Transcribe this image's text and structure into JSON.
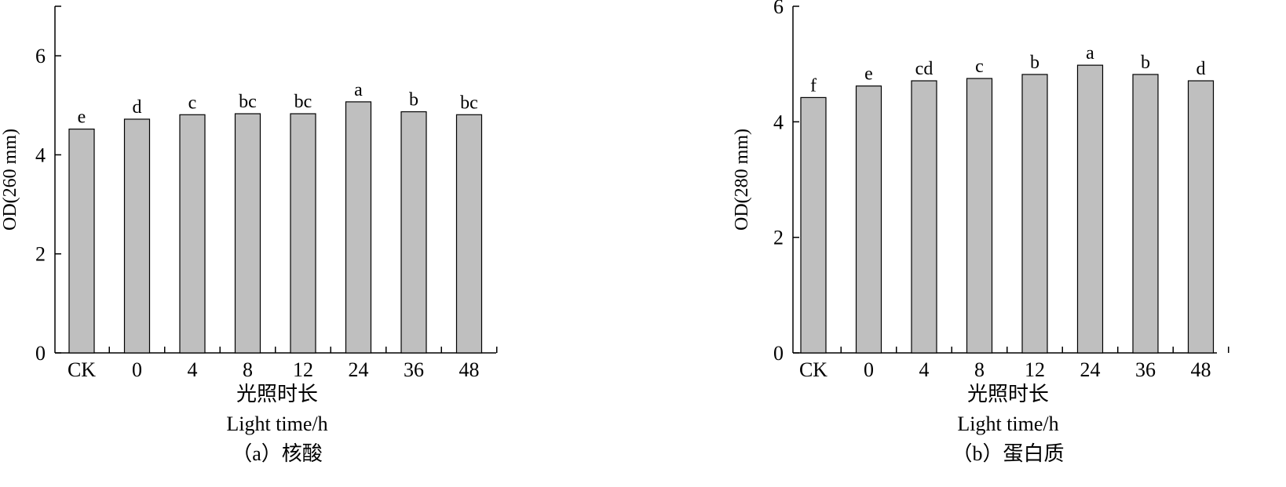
{
  "chart_data": [
    {
      "type": "bar",
      "categories": [
        "CK",
        "0",
        "4",
        "8",
        "12",
        "24",
        "36",
        "48"
      ],
      "values": [
        4.52,
        4.72,
        4.81,
        4.83,
        4.83,
        5.07,
        4.87,
        4.81
      ],
      "significance": [
        "e",
        "d",
        "c",
        "bc",
        "bc",
        "a",
        "b",
        "bc"
      ],
      "ylabel": "OD(260 mm)",
      "xlabel_cn": "光照时长",
      "xlabel_en": "Light time/h",
      "caption": "（a）核酸",
      "ylim": [
        0,
        7
      ],
      "yticks": [
        0,
        2,
        4,
        6
      ],
      "bar_color": "#bfbfbf",
      "grid": false
    },
    {
      "type": "bar",
      "categories": [
        "CK",
        "0",
        "4",
        "8",
        "12",
        "24",
        "36",
        "48"
      ],
      "values": [
        4.42,
        4.62,
        4.71,
        4.75,
        4.82,
        4.98,
        4.82,
        4.71
      ],
      "significance": [
        "f",
        "e",
        "cd",
        "c",
        "b",
        "a",
        "b",
        "d"
      ],
      "ylabel": "OD(280 mm)",
      "xlabel_cn": "光照时长",
      "xlabel_en": "Light time/h",
      "caption": "（b）蛋白质",
      "ylim": [
        0,
        6
      ],
      "yticks": [
        0,
        2,
        4,
        6
      ],
      "bar_color": "#bfbfbf",
      "grid": false
    }
  ]
}
